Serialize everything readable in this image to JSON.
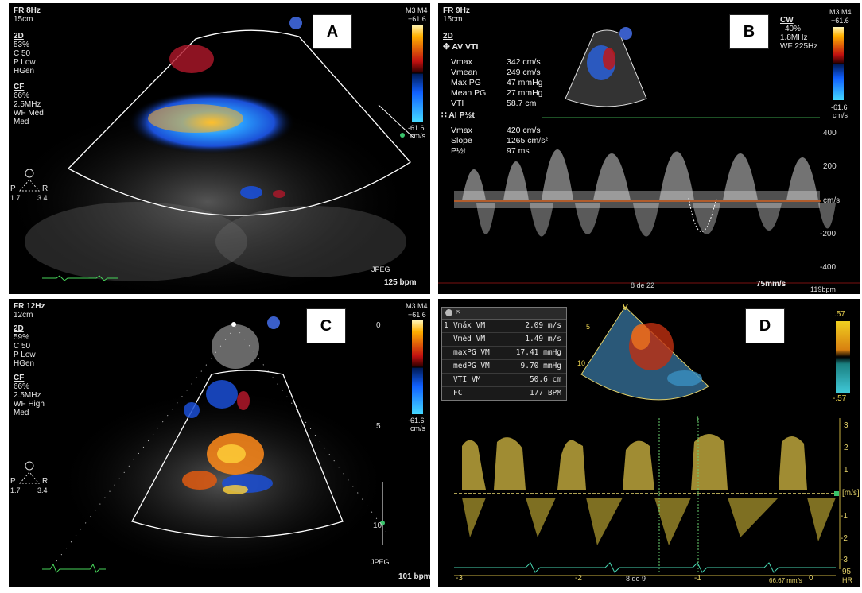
{
  "panel_a": {
    "label": "A",
    "fr": "FR 8Hz",
    "depth": "15cm",
    "mode_2d": "2D",
    "params_2d": [
      "53%",
      "C 50",
      "P Low",
      "HGen"
    ],
    "mode_cf": "CF",
    "params_cf": [
      "66%",
      "2.5MHz",
      "WF Med",
      "Med"
    ],
    "scale_top": "M3 M4",
    "scale_max": "+61.6",
    "scale_min": "-61.6",
    "scale_unit": "cm/s",
    "orient_p": "P",
    "orient_r": "R",
    "orient_l": "1.7",
    "orient_rv": "3.4",
    "format": "JPEG",
    "hr": "125 bpm",
    "probe_icon": "P"
  },
  "panel_b": {
    "label": "B",
    "fr": "FR 9Hz",
    "depth": "15cm",
    "mode_2d": "2D",
    "mode_cw": "CW",
    "cw_params": [
      "40%",
      "1.8MHz",
      "WF 225Hz"
    ],
    "scale_top": "M3 M4",
    "scale_max": "+61.6",
    "scale_min": "-61.6",
    "scale_unit": "cm/s",
    "probe_icon": "P",
    "section1": "AV VTI",
    "measures1": [
      {
        "k": "Vmax",
        "v": "342 cm/s"
      },
      {
        "k": "Vmean",
        "v": "249 cm/s"
      },
      {
        "k": "Max PG",
        "v": "47 mmHg"
      },
      {
        "k": "Mean PG",
        "v": "27 mmHg"
      },
      {
        "k": "VTI",
        "v": "58.7 cm"
      }
    ],
    "section2": "AI P½t",
    "measures2": [
      {
        "k": "Vmax",
        "v": "420 cm/s"
      },
      {
        "k": "Slope",
        "v": "1265 cm/s²"
      },
      {
        "k": "P½t",
        "v": "97 ms"
      }
    ],
    "y_ticks": [
      "400",
      "200",
      "cm/s",
      "-200",
      "-400"
    ],
    "page": "8 de 22",
    "sweep": "75mm/s",
    "hr": "119bpm"
  },
  "panel_c": {
    "label": "C",
    "fr": "FR 12Hz",
    "depth": "12cm",
    "mode_2d": "2D",
    "params_2d": [
      "59%",
      "C 50",
      "P Low",
      "HGen"
    ],
    "mode_cf": "CF",
    "params_cf": [
      "66%",
      "2.5MHz",
      "WF High",
      "Med"
    ],
    "scale_top": "M3 M4",
    "scale_max": "+61.6",
    "scale_min": "-61.6",
    "scale_unit": "cm/s",
    "depth_ticks": [
      "0",
      "5",
      "10"
    ],
    "orient_p": "P",
    "orient_r": "R",
    "orient_l": "1.7",
    "orient_rv": "3.4",
    "format": "JPEG",
    "hr": "101 bpm",
    "probe_icon": "P"
  },
  "panel_d": {
    "label": "D",
    "rows": [
      {
        "k": "Vmáx VM",
        "v": "2.09 m/s"
      },
      {
        "k": "Vméd VM",
        "v": "1.49 m/s"
      },
      {
        "k": "maxPG VM",
        "v": "17.41 mmHg"
      },
      {
        "k": "medPG VM",
        "v": "9.70 mmHg"
      },
      {
        "k": "VTI VM",
        "v": "50.6 cm"
      },
      {
        "k": "FC",
        "v": "177 BPM"
      }
    ],
    "row_index": "1",
    "scale_max": ".57",
    "scale_min": "-.57",
    "y_ticks": [
      "3",
      "2",
      "1",
      "[m/s]",
      "-1",
      "-2",
      "-3"
    ],
    "x_ticks": [
      "-3",
      "-2",
      "-1",
      "0"
    ],
    "page": "8 de 9",
    "hr_value": "95",
    "hr_label": "HR",
    "sweep": "66.67 mm/s",
    "sector_marks": [
      "5",
      "10"
    ],
    "sector_v": "V",
    "cursor_mark": "1"
  }
}
